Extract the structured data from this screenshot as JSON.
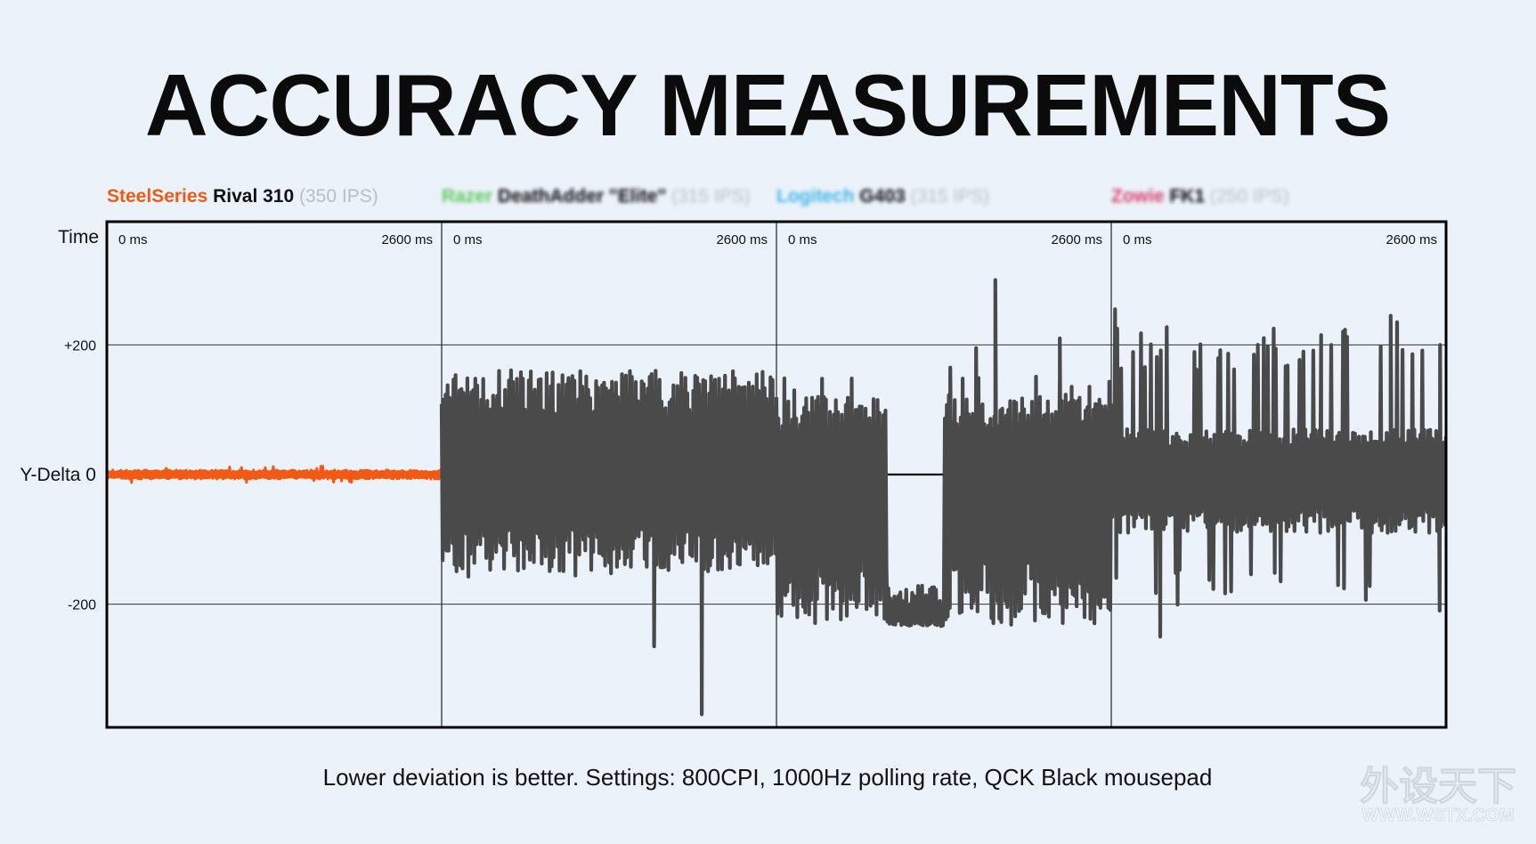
{
  "chart_data": {
    "type": "line",
    "title": "ACCURACY MEASUREMENTS",
    "footnote": "Lower deviation is better. Settings: 800CPI, 1000Hz polling rate, QCK Black mousepad",
    "watermark": {
      "cn": "外设天下",
      "url": "WWW.WSTX.COM"
    },
    "time_label": "Time",
    "ylabel": "Y-Delta",
    "ylim": [
      -390,
      390
    ],
    "y_ticks": [
      {
        "value": 200,
        "label": "+200"
      },
      {
        "value": 0,
        "label": "0"
      },
      {
        "value": -200,
        "label": "-200"
      }
    ],
    "x_ticks": {
      "start": "0 ms",
      "end": "2600 ms"
    },
    "x_range_ms": [
      0,
      2600
    ],
    "grid": true,
    "colors": {
      "highlight": "#f05a14",
      "series": "#4a4a4a",
      "brand_razer": "#5cc85c",
      "brand_logitech": "#3fb5e6",
      "brand_zowie": "#d8436a"
    },
    "panels": [
      {
        "brand": "SteelSeries",
        "model": "Rival 310",
        "ips": "(350 IPS)",
        "brand_color": "#f05a14",
        "line_color": "#f05a14",
        "blurred": false,
        "deviation": {
          "base_low": -7,
          "base_high": 7,
          "spike_low": -13,
          "spike_high": 13,
          "spike_rate": 0.05,
          "seed": 3
        },
        "notable_peaks": []
      },
      {
        "brand": "Razer",
        "model": "DeathAdder \"Elite\"",
        "ips": "(315 IPS)",
        "brand_color": "#5cc85c",
        "line_color": "#4a4a4a",
        "blurred": true,
        "deviation": {
          "base_low": -150,
          "base_high": 160,
          "spike_low": -160,
          "spike_high": 165,
          "spike_rate": 0.08,
          "seed": 11
        },
        "notable_peaks": [
          {
            "t_ms": 1650,
            "value": -265
          },
          {
            "t_ms": 2020,
            "value": -370
          }
        ]
      },
      {
        "brand": "Logitech",
        "model": "G403",
        "ips": "(315 IPS)",
        "brand_color": "#3fb5e6",
        "line_color": "#4a4a4a",
        "blurred": true,
        "deviation": {
          "base_low": -230,
          "base_high": 120,
          "spike_low": -245,
          "spike_high": 160,
          "spike_rate": 0.1,
          "seed": 29
        },
        "notable_peaks": [
          {
            "t_ms": 1700,
            "value": 300
          },
          {
            "t_ms": 1550,
            "value": 195
          },
          {
            "t_ms": 1350,
            "value": 165
          },
          {
            "t_ms": 2200,
            "value": 210
          }
        ]
      },
      {
        "brand": "Zowie",
        "model": "FK1",
        "ips": "(250 IPS)",
        "brand_color": "#d8436a",
        "line_color": "#4a4a4a",
        "blurred": true,
        "deviation": {
          "base_low": -90,
          "base_high": 70,
          "spike_low": -210,
          "spike_high": 230,
          "spike_rate": 0.2,
          "seed": 47
        },
        "notable_peaks": [
          {
            "t_ms": 30,
            "value": 255
          },
          {
            "t_ms": 380,
            "value": -250
          },
          {
            "t_ms": 2170,
            "value": 245
          },
          {
            "t_ms": 2220,
            "value": 235
          },
          {
            "t_ms": 1630,
            "value": 215
          },
          {
            "t_ms": 2550,
            "value": -210
          }
        ]
      }
    ]
  }
}
